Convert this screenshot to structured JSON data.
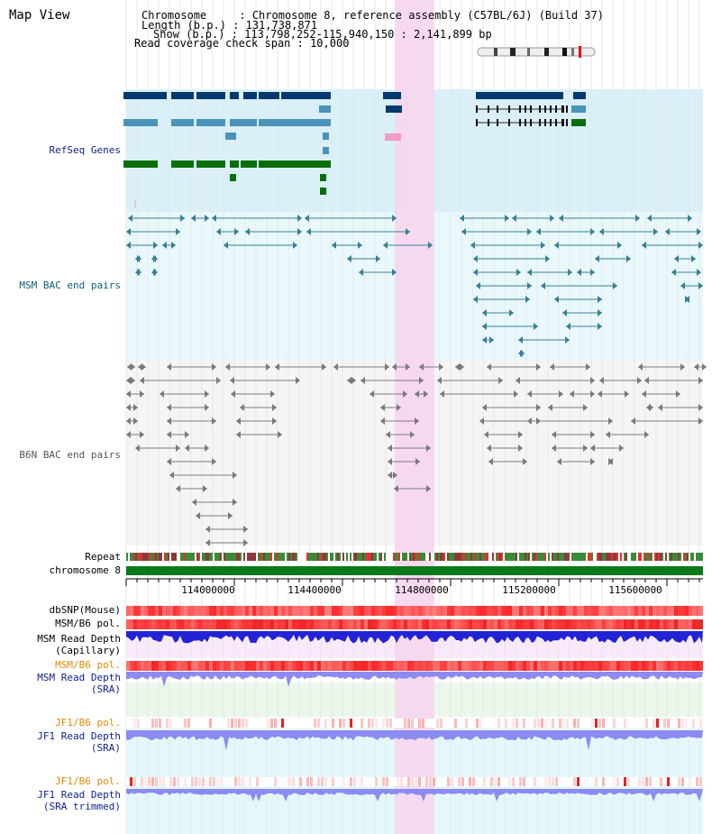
{
  "title": "Map View",
  "info": {
    "chromosome": "Chromosome     : Chromosome 8, reference assembly (C57BL/6J) (Build 37)",
    "length": "Length (b.p.) : 131,738,871",
    "show": "Show (b.p.) : 113,798,252-115,940,150 : 2,141,899 bp",
    "coverage": "Read coverage check span : 10,000"
  },
  "tracks": {
    "refseq": "RefSeq Genes",
    "msm_bac": "MSM BAC end pairs",
    "b6n_bac": "B6N BAC end pairs",
    "repeat": "Repeat",
    "chromosome": "chromosome 8",
    "dbsnp": "dbSNP(Mouse)",
    "msm_pol_1": "MSM/B6 pol.",
    "msm_depth_cap": "MSM Read Depth\n(Capillary)",
    "msm_pol_2": "MSM/B6 pol.",
    "msm_depth_sra": "MSM Read Depth\n(SRA)",
    "jf1_pol_1": "JF1/B6 pol.",
    "jf1_depth_sra": "JF1 Read Depth\n(SRA)",
    "jf1_pol_2": "JF1/B6 pol.",
    "jf1_depth_trim": "JF1 Read Depth\n(SRA trimmed)"
  },
  "axis": {
    "ticks": [
      "114000000",
      "114400000",
      "114800000",
      "115200000",
      "115600000"
    ]
  },
  "colors": {
    "refseq_dark": "#063a6e",
    "refseq_mid": "#4a93b9",
    "refseq_green": "#0a6e0a",
    "refseq_pink": "#f19ac8",
    "msm_line": "#3a7f94",
    "b6n_line": "#7a7a7a",
    "highlight": "#f6d6ef",
    "depth_blue": "#2323d6",
    "depth_light": "#8b8bf2",
    "pol_red": "#e83a3a",
    "label_blue": "#0b1f8e",
    "label_orange": "#e08a00",
    "label_teal": "#0b5e7a"
  }
}
